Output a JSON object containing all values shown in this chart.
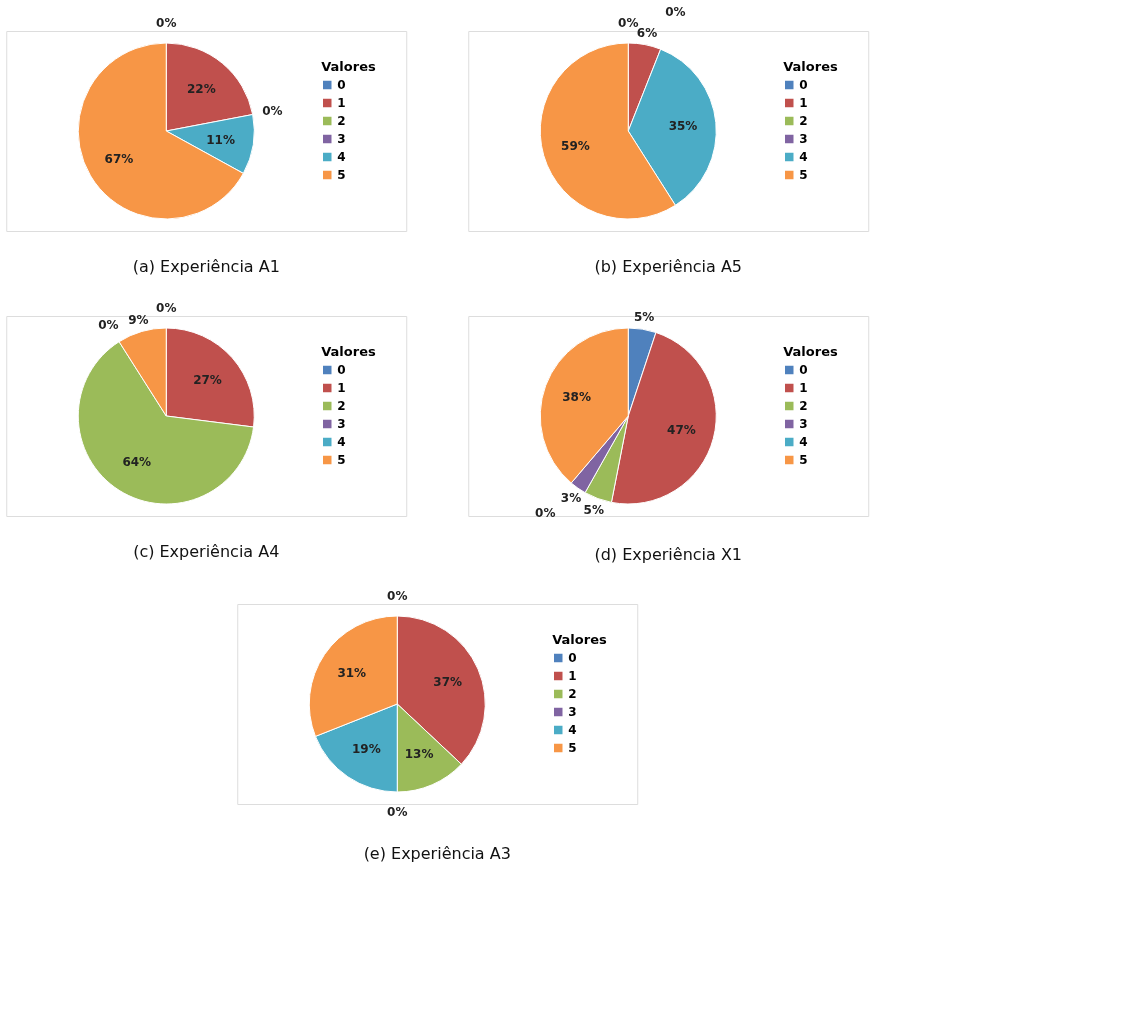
{
  "chart_data": [
    {
      "type": "pie",
      "title": "(a) Experiência A1",
      "legend_title": "Valores",
      "legend": "right",
      "categories": [
        "0",
        "1",
        "2",
        "3",
        "4",
        "5"
      ],
      "values": [
        0,
        22,
        0,
        0,
        11,
        67
      ],
      "value_labels": [
        "0%",
        "22%",
        "0%",
        null,
        "11%",
        "67%"
      ],
      "colors": [
        "#4f81bd",
        "#c0504d",
        "#9bbb59",
        "#8064a2",
        "#4bacc6",
        "#f79646"
      ]
    },
    {
      "type": "pie",
      "title": "(b) Experiência A5",
      "legend_title": "Valores",
      "legend": "right",
      "categories": [
        "0",
        "1",
        "2",
        "3",
        "4",
        "5"
      ],
      "values": [
        0,
        6,
        0,
        0,
        35,
        59
      ],
      "value_labels": [
        "0%",
        "6%",
        "0%",
        null,
        "35%",
        "59%"
      ],
      "colors": [
        "#4f81bd",
        "#c0504d",
        "#9bbb59",
        "#8064a2",
        "#4bacc6",
        "#f79646"
      ]
    },
    {
      "type": "pie",
      "title": "(c) Experiência A4",
      "legend_title": "Valores",
      "legend": "right",
      "categories": [
        "0",
        "1",
        "2",
        "3",
        "4",
        "5"
      ],
      "values": [
        0,
        27,
        64,
        0,
        0,
        9
      ],
      "value_labels": [
        "0%",
        "27%",
        "64%",
        "0%",
        null,
        "9%"
      ],
      "colors": [
        "#4f81bd",
        "#c0504d",
        "#9bbb59",
        "#8064a2",
        "#4bacc6",
        "#f79646"
      ]
    },
    {
      "type": "pie",
      "title": "(d) Experiência X1",
      "legend_title": "Valores",
      "legend": "right",
      "categories": [
        "0",
        "1",
        "2",
        "3",
        "4",
        "5"
      ],
      "values": [
        5,
        47,
        5,
        3,
        0,
        38
      ],
      "value_labels": [
        "5%",
        "47%",
        "5%",
        "3%",
        "0%",
        "38%"
      ],
      "colors": [
        "#4f81bd",
        "#c0504d",
        "#9bbb59",
        "#8064a2",
        "#4bacc6",
        "#f79646"
      ]
    },
    {
      "type": "pie",
      "title": "(e) Experiência A3",
      "legend_title": "Valores",
      "legend": "right",
      "categories": [
        "0",
        "1",
        "2",
        "3",
        "4",
        "5"
      ],
      "values": [
        0,
        37,
        13,
        0,
        19,
        31
      ],
      "value_labels": [
        "0%",
        "37%",
        "13%",
        "0%",
        "19%",
        "31%"
      ],
      "colors": [
        "#4f81bd",
        "#c0504d",
        "#9bbb59",
        "#8064a2",
        "#4bacc6",
        "#f79646"
      ]
    }
  ]
}
